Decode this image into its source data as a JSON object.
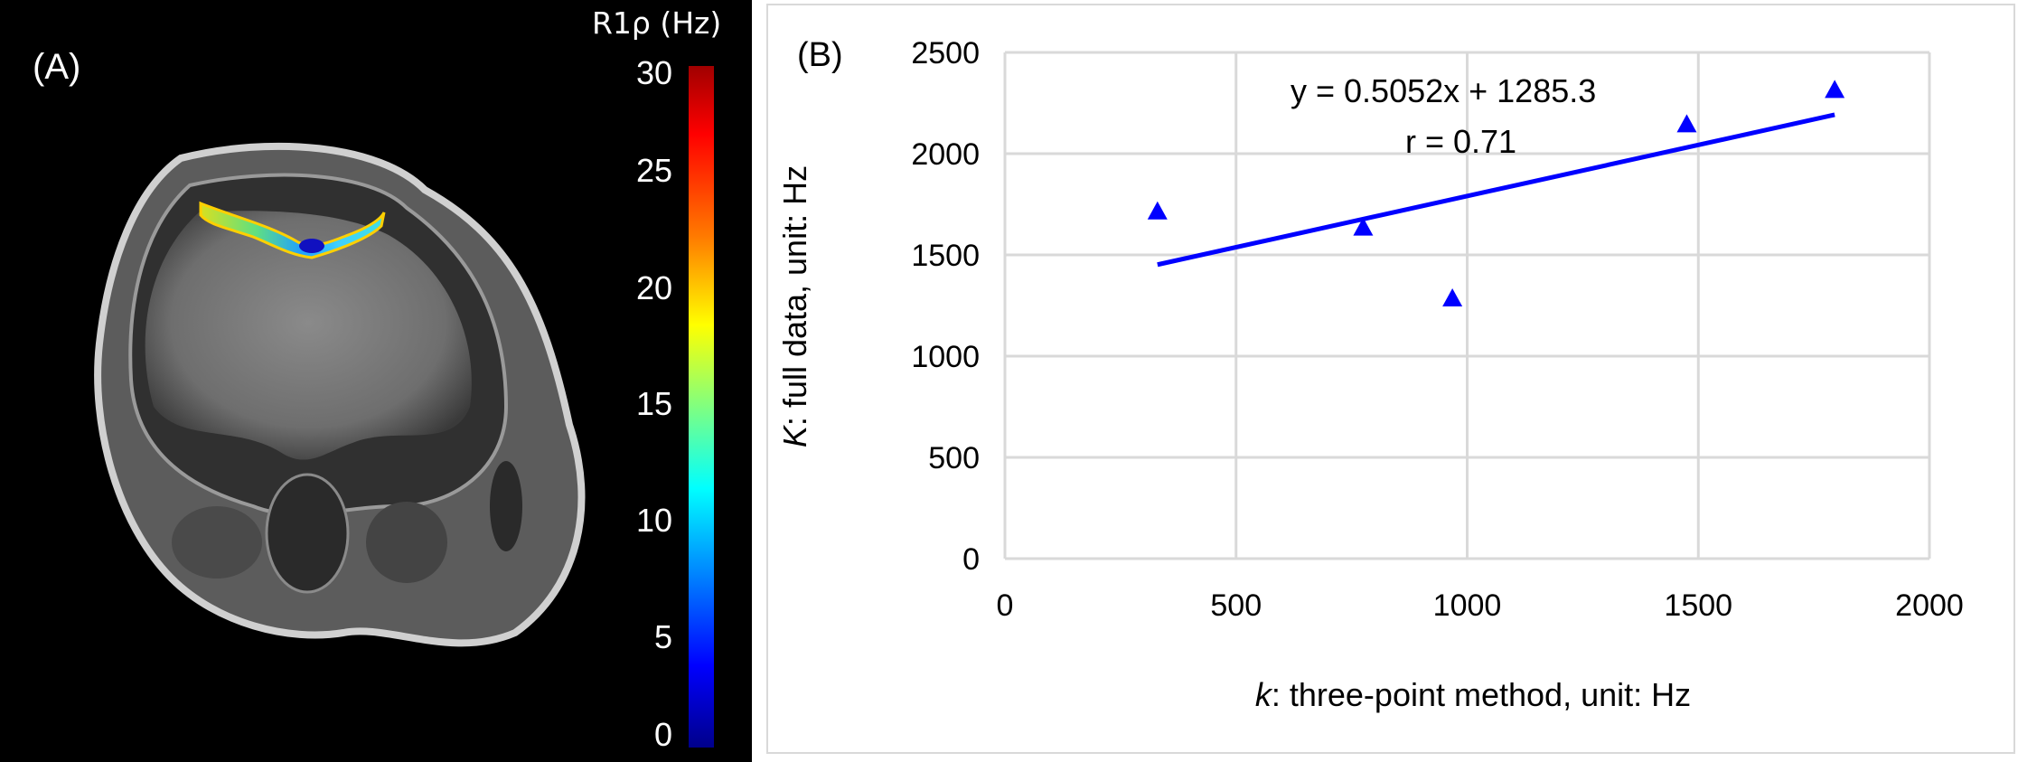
{
  "panel_a": {
    "label": "(A)",
    "colorbar": {
      "title": "R1ρ (Hz)",
      "ticks": [
        "30",
        "25",
        "20",
        "15",
        "10",
        "5",
        "0"
      ],
      "min": 0,
      "max": 30
    }
  },
  "panel_b": {
    "label": "(B)",
    "equation": "y = 0.5052x + 1285.3",
    "r_text": "r = 0.71",
    "ylabel_var": "K",
    "ylabel_rest": ": full data, unit: Hz",
    "xlabel_var": "k",
    "xlabel_rest": ": three-point method, unit: Hz"
  },
  "chart_data": {
    "type": "scatter",
    "marker": "triangle",
    "marker_color": "#0000ff",
    "x_ticks": [
      "0",
      "500",
      "1000",
      "1500",
      "2000"
    ],
    "y_ticks": [
      "0",
      "500",
      "1000",
      "1500",
      "2000",
      "2500"
    ],
    "xlim": [
      0,
      2000
    ],
    "ylim": [
      0,
      2500
    ],
    "grid": true,
    "series": [
      {
        "x": [
          330,
          775,
          968,
          1475,
          1795
        ],
        "y": [
          1720,
          1640,
          1290,
          2150,
          2320
        ]
      }
    ],
    "trendline": {
      "slope": 0.5052,
      "intercept": 1285.3,
      "x_range": [
        330,
        1795
      ],
      "color": "#0000ff"
    }
  }
}
